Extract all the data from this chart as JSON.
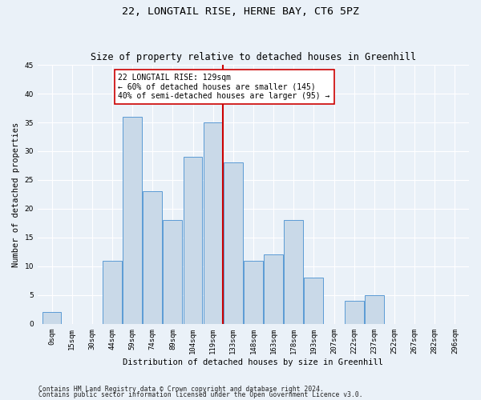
{
  "title1": "22, LONGTAIL RISE, HERNE BAY, CT6 5PZ",
  "title2": "Size of property relative to detached houses in Greenhill",
  "xlabel": "Distribution of detached houses by size in Greenhill",
  "ylabel": "Number of detached properties",
  "bin_labels": [
    "0sqm",
    "15sqm",
    "30sqm",
    "44sqm",
    "59sqm",
    "74sqm",
    "89sqm",
    "104sqm",
    "119sqm",
    "133sqm",
    "148sqm",
    "163sqm",
    "178sqm",
    "193sqm",
    "207sqm",
    "222sqm",
    "237sqm",
    "252sqm",
    "267sqm",
    "282sqm",
    "296sqm"
  ],
  "bar_heights": [
    2,
    0,
    0,
    11,
    36,
    23,
    18,
    29,
    35,
    28,
    11,
    12,
    18,
    8,
    0,
    4,
    5,
    0,
    0,
    0,
    0
  ],
  "bar_color": "#c9d9e8",
  "bar_edge_color": "#5b9bd5",
  "vline_x": 8.5,
  "vline_color": "#cc0000",
  "annotation_text": "22 LONGTAIL RISE: 129sqm\n← 60% of detached houses are smaller (145)\n40% of semi-detached houses are larger (95) →",
  "annotation_box_color": "#ffffff",
  "annotation_box_edge": "#cc0000",
  "ylim": [
    0,
    45
  ],
  "yticks": [
    0,
    5,
    10,
    15,
    20,
    25,
    30,
    35,
    40,
    45
  ],
  "footer1": "Contains HM Land Registry data © Crown copyright and database right 2024.",
  "footer2": "Contains public sector information licensed under the Open Government Licence v3.0.",
  "background_color": "#eaf1f8",
  "plot_background": "#eaf1f8",
  "grid_color": "#ffffff",
  "title_fontsize": 9.5,
  "subtitle_fontsize": 8.5,
  "axis_label_fontsize": 7.5,
  "tick_fontsize": 6.5,
  "annotation_fontsize": 7.0,
  "footer_fontsize": 5.8
}
